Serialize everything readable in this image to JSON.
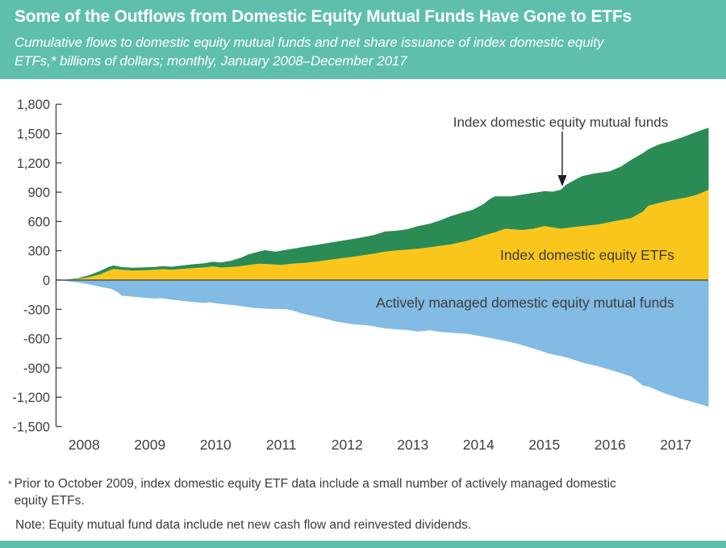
{
  "header": {
    "title": "Some of the Outflows from Domestic Equity Mutual Funds Have Gone to ETFs",
    "subtitle_line1": "Cumulative flows to domestic equity mutual funds and net share issuance of index domestic equity",
    "subtitle_line2": "ETFs,* billions of dollars; monthly, January 2008–December 2017"
  },
  "footnote": {
    "star": "*",
    "line1": "Prior to October 2009, index domestic equity ETF data include a small number of actively managed domestic",
    "line2": "equity ETFs.",
    "note": "Note: Equity mutual fund data include net new cash flow and reinvested dividends."
  },
  "colors": {
    "header_teal": "#5EBFAD",
    "index_mutual_funds_green": "#2B8B55",
    "index_etfs_yellow": "#FAC61B",
    "active_funds_blue": "#82BBE4",
    "axis_gray": "#414042",
    "label_gray": "#3B3B3B"
  },
  "chart_data": {
    "type": "area",
    "stacked": true,
    "title": "Cumulative flows to domestic equity mutual funds and net share issuance of index domestic equity ETFs",
    "units": "billions of dollars",
    "frequency": "monthly, January 2008 - December 2017",
    "xlabel": "",
    "ylabel": "",
    "x_range": [
      2008.0,
      2017.92
    ],
    "ylim": [
      -1500,
      1800
    ],
    "grid": false,
    "legend_position": "labels-inside-areas",
    "y_ticks": [
      {
        "label": "1,800",
        "value": 1800
      },
      {
        "label": "1,500",
        "value": 1500
      },
      {
        "label": "1,200",
        "value": 1200
      },
      {
        "label": "900",
        "value": 900
      },
      {
        "label": "600",
        "value": 600
      },
      {
        "label": "300",
        "value": 300
      },
      {
        "label": "0",
        "value": 0
      },
      {
        "label": "-300",
        "value": -300
      },
      {
        "label": "-600",
        "value": -600
      },
      {
        "label": "-900",
        "value": -900
      },
      {
        "label": "-1,200",
        "value": -1200
      },
      {
        "label": "-1,500",
        "value": -1500
      }
    ],
    "x_ticks": [
      {
        "label": "2008",
        "value": 2008
      },
      {
        "label": "2009",
        "value": 2009
      },
      {
        "label": "2010",
        "value": 2010
      },
      {
        "label": "2011",
        "value": 2011
      },
      {
        "label": "2012",
        "value": 2012
      },
      {
        "label": "2013",
        "value": 2013
      },
      {
        "label": "2014",
        "value": 2014
      },
      {
        "label": "2015",
        "value": 2015
      },
      {
        "label": "2016",
        "value": 2016
      },
      {
        "label": "2017",
        "value": 2017
      }
    ],
    "series": [
      {
        "name": "Index domestic equity mutual funds",
        "color": "#2B8B55",
        "role": "stack-top-of-positive-stack (values are ETFs + index mutual funds cumulative total)",
        "points": [
          [
            2008.0,
            0
          ],
          [
            2008.17,
            5
          ],
          [
            2008.33,
            20
          ],
          [
            2008.5,
            50
          ],
          [
            2008.67,
            95
          ],
          [
            2008.79,
            135
          ],
          [
            2008.87,
            150
          ],
          [
            2009.0,
            132
          ],
          [
            2009.17,
            126
          ],
          [
            2009.33,
            130
          ],
          [
            2009.5,
            135
          ],
          [
            2009.62,
            142
          ],
          [
            2009.75,
            136
          ],
          [
            2009.92,
            150
          ],
          [
            2010.08,
            162
          ],
          [
            2010.25,
            172
          ],
          [
            2010.38,
            188
          ],
          [
            2010.5,
            180
          ],
          [
            2010.67,
            200
          ],
          [
            2010.83,
            235
          ],
          [
            2010.92,
            264
          ],
          [
            2011.08,
            292
          ],
          [
            2011.17,
            306
          ],
          [
            2011.33,
            292
          ],
          [
            2011.58,
            319
          ],
          [
            2011.83,
            347
          ],
          [
            2012.08,
            374
          ],
          [
            2012.33,
            402
          ],
          [
            2012.58,
            429
          ],
          [
            2012.83,
            460
          ],
          [
            2013.0,
            498
          ],
          [
            2013.17,
            505
          ],
          [
            2013.33,
            520
          ],
          [
            2013.5,
            553
          ],
          [
            2013.67,
            575
          ],
          [
            2013.83,
            610
          ],
          [
            2014.0,
            655
          ],
          [
            2014.17,
            690
          ],
          [
            2014.33,
            719
          ],
          [
            2014.5,
            780
          ],
          [
            2014.58,
            825
          ],
          [
            2014.67,
            857
          ],
          [
            2014.92,
            857
          ],
          [
            2015.17,
            884
          ],
          [
            2015.33,
            900
          ],
          [
            2015.42,
            911
          ],
          [
            2015.55,
            905
          ],
          [
            2015.67,
            925
          ],
          [
            2015.75,
            975
          ],
          [
            2015.92,
            1040
          ],
          [
            2016.0,
            1065
          ],
          [
            2016.17,
            1090
          ],
          [
            2016.42,
            1115
          ],
          [
            2016.58,
            1160
          ],
          [
            2016.75,
            1235
          ],
          [
            2016.92,
            1300
          ],
          [
            2017.0,
            1338
          ],
          [
            2017.17,
            1390
          ],
          [
            2017.33,
            1420
          ],
          [
            2017.52,
            1462
          ],
          [
            2017.67,
            1500
          ],
          [
            2017.83,
            1540
          ],
          [
            2017.92,
            1560
          ]
        ]
      },
      {
        "name": "Index domestic equity ETFs",
        "color": "#FAC61B",
        "role": "positive stack base series (cumulative net share issuance)",
        "points": [
          [
            2008.0,
            0
          ],
          [
            2008.17,
            3
          ],
          [
            2008.33,
            12
          ],
          [
            2008.5,
            30
          ],
          [
            2008.67,
            60
          ],
          [
            2008.79,
            95
          ],
          [
            2008.87,
            113
          ],
          [
            2009.0,
            105
          ],
          [
            2009.17,
            97
          ],
          [
            2009.33,
            100
          ],
          [
            2009.5,
            105
          ],
          [
            2009.62,
            112
          ],
          [
            2009.75,
            106
          ],
          [
            2009.92,
            115
          ],
          [
            2010.08,
            122
          ],
          [
            2010.25,
            130
          ],
          [
            2010.38,
            140
          ],
          [
            2010.5,
            128
          ],
          [
            2010.75,
            138
          ],
          [
            2010.92,
            154
          ],
          [
            2011.08,
            168
          ],
          [
            2011.25,
            162
          ],
          [
            2011.42,
            154
          ],
          [
            2011.58,
            168
          ],
          [
            2011.75,
            174
          ],
          [
            2011.92,
            187
          ],
          [
            2012.08,
            201
          ],
          [
            2012.33,
            223
          ],
          [
            2012.58,
            245
          ],
          [
            2012.83,
            270
          ],
          [
            2013.0,
            292
          ],
          [
            2013.25,
            308
          ],
          [
            2013.5,
            320
          ],
          [
            2013.75,
            342
          ],
          [
            2014.0,
            366
          ],
          [
            2014.25,
            402
          ],
          [
            2014.5,
            457
          ],
          [
            2014.67,
            490
          ],
          [
            2014.83,
            526
          ],
          [
            2015.08,
            512
          ],
          [
            2015.25,
            525
          ],
          [
            2015.42,
            553
          ],
          [
            2015.67,
            526
          ],
          [
            2015.83,
            540
          ],
          [
            2016.0,
            553
          ],
          [
            2016.25,
            570
          ],
          [
            2016.42,
            594
          ],
          [
            2016.75,
            636
          ],
          [
            2016.92,
            700
          ],
          [
            2017.0,
            760
          ],
          [
            2017.17,
            790
          ],
          [
            2017.33,
            815
          ],
          [
            2017.58,
            845
          ],
          [
            2017.75,
            875
          ],
          [
            2017.92,
            925
          ]
        ]
      },
      {
        "name": "Actively managed domestic equity mutual funds",
        "color": "#82BBE4",
        "role": "negative area (cumulative outflows)",
        "points": [
          [
            2008.0,
            0
          ],
          [
            2008.17,
            -12
          ],
          [
            2008.33,
            -25
          ],
          [
            2008.5,
            -45
          ],
          [
            2008.67,
            -70
          ],
          [
            2008.83,
            -90
          ],
          [
            2008.92,
            -120
          ],
          [
            2009.0,
            -160
          ],
          [
            2009.25,
            -175
          ],
          [
            2009.5,
            -190
          ],
          [
            2009.58,
            -185
          ],
          [
            2009.75,
            -200
          ],
          [
            2010.0,
            -220
          ],
          [
            2010.25,
            -235
          ],
          [
            2010.33,
            -228
          ],
          [
            2010.5,
            -245
          ],
          [
            2010.75,
            -260
          ],
          [
            2011.0,
            -286
          ],
          [
            2011.25,
            -295
          ],
          [
            2011.5,
            -300
          ],
          [
            2011.58,
            -310
          ],
          [
            2011.75,
            -345
          ],
          [
            2012.0,
            -382
          ],
          [
            2012.25,
            -425
          ],
          [
            2012.5,
            -451
          ],
          [
            2012.75,
            -465
          ],
          [
            2013.0,
            -495
          ],
          [
            2013.17,
            -505
          ],
          [
            2013.33,
            -510
          ],
          [
            2013.5,
            -528
          ],
          [
            2013.67,
            -515
          ],
          [
            2013.83,
            -530
          ],
          [
            2014.0,
            -540
          ],
          [
            2014.25,
            -550
          ],
          [
            2014.5,
            -580
          ],
          [
            2014.75,
            -612
          ],
          [
            2015.0,
            -650
          ],
          [
            2015.25,
            -700
          ],
          [
            2015.5,
            -754
          ],
          [
            2015.75,
            -790
          ],
          [
            2016.0,
            -845
          ],
          [
            2016.25,
            -885
          ],
          [
            2016.5,
            -935
          ],
          [
            2016.75,
            -990
          ],
          [
            2016.92,
            -1080
          ],
          [
            2017.0,
            -1090
          ],
          [
            2017.25,
            -1160
          ],
          [
            2017.5,
            -1215
          ],
          [
            2017.75,
            -1262
          ],
          [
            2017.92,
            -1300
          ]
        ]
      }
    ],
    "annotation": {
      "text": "Index domestic equity mutual funds",
      "arrow_points_to": "top of green area, mid-2015 (~940 billion)"
    }
  }
}
